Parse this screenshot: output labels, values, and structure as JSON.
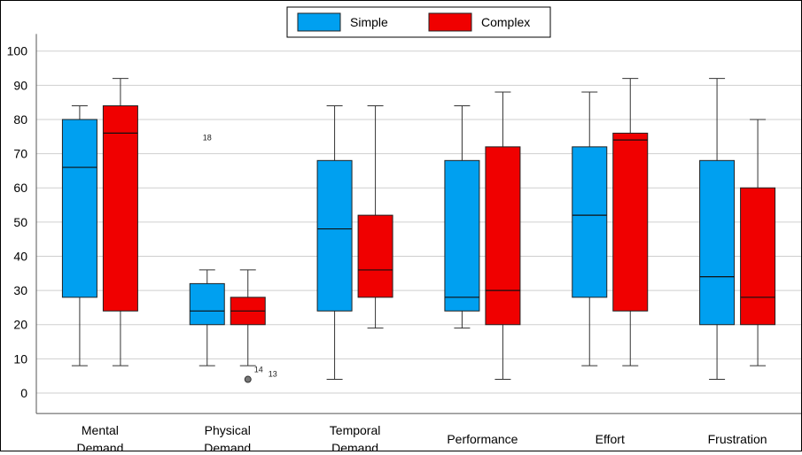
{
  "chart_data": {
    "type": "box",
    "title": "",
    "xlabel": "",
    "ylabel": "",
    "ylim": [
      -6,
      105
    ],
    "yticks": [
      0,
      10,
      20,
      30,
      40,
      50,
      60,
      70,
      80,
      90,
      100
    ],
    "grid": true,
    "legend_position": "top-center",
    "categories": [
      [
        "Mental",
        "Demand"
      ],
      [
        "Physical",
        "Demand"
      ],
      [
        "Temporal",
        "Demand"
      ],
      [
        "Performance"
      ],
      [
        "Effort"
      ],
      [
        "Frustration"
      ]
    ],
    "series": [
      {
        "name": "Simple",
        "color": "#00a0f0",
        "boxes": [
          {
            "min": 8,
            "q1": 28,
            "median": 66,
            "q3": 80,
            "max": 84
          },
          {
            "min": 8,
            "q1": 20,
            "median": 24,
            "q3": 32,
            "max": 36
          },
          {
            "min": 4,
            "q1": 24,
            "median": 48,
            "q3": 68,
            "max": 84
          },
          {
            "min": 19,
            "q1": 24,
            "median": 28,
            "q3": 68,
            "max": 84
          },
          {
            "min": 8,
            "q1": 28,
            "median": 52,
            "q3": 72,
            "max": 88
          },
          {
            "min": 4,
            "q1": 20,
            "median": 34,
            "q3": 68,
            "max": 92
          }
        ]
      },
      {
        "name": "Complex",
        "color": "#f00000",
        "boxes": [
          {
            "min": 8,
            "q1": 24,
            "median": 76,
            "q3": 84,
            "max": 92
          },
          {
            "min": 8,
            "q1": 20,
            "median": 24,
            "q3": 28,
            "max": 36
          },
          {
            "min": 19,
            "q1": 28,
            "median": 36,
            "q3": 52,
            "max": 84
          },
          {
            "min": 4,
            "q1": 20,
            "median": 30,
            "q3": 72,
            "max": 88
          },
          {
            "min": 8,
            "q1": 24,
            "median": 74,
            "q3": 76,
            "max": 92
          },
          {
            "min": 8,
            "q1": 20,
            "median": 28,
            "q3": 60,
            "max": 80
          }
        ]
      }
    ],
    "outliers": [
      {
        "category": 1,
        "series": 1,
        "value": 4,
        "marker": "circle",
        "labels": [
          "14",
          "13"
        ]
      },
      {
        "category": 1,
        "series": 0,
        "value": 75,
        "marker": "none",
        "labels": [
          "18"
        ]
      }
    ]
  }
}
